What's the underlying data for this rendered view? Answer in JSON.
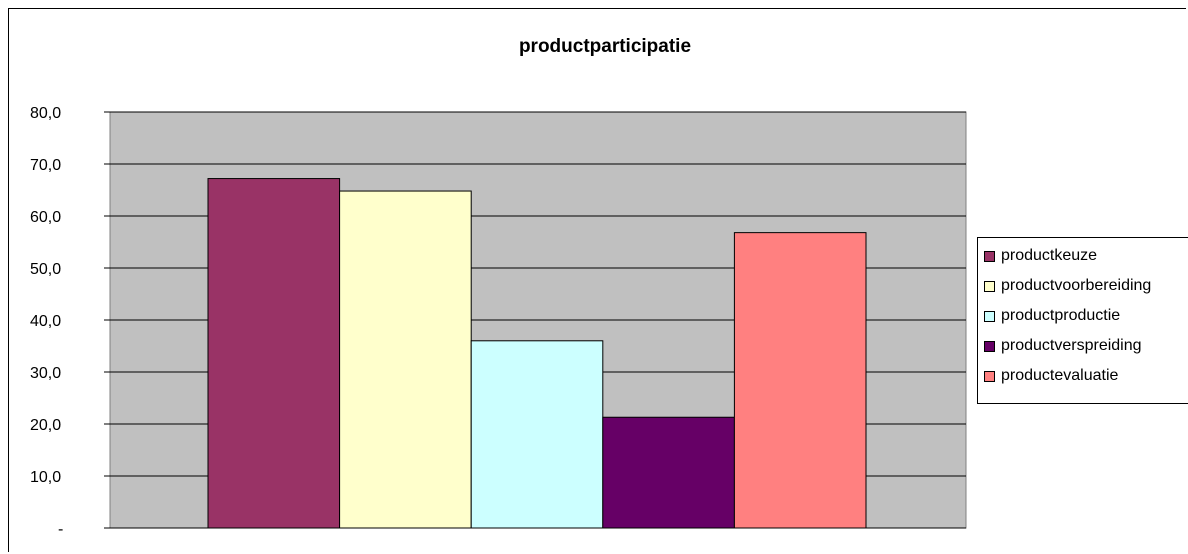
{
  "chart_data": {
    "type": "bar",
    "title": "productparticipatie",
    "xlabel": "",
    "ylabel": "",
    "ylim": [
      0,
      80
    ],
    "y_ticks": [
      "-",
      "10,0",
      "20,0",
      "30,0",
      "40,0",
      "50,0",
      "60,0",
      "70,0",
      "80,0"
    ],
    "grid": true,
    "legend_position": "right",
    "plot_background": "#c0c0c0",
    "series": [
      {
        "name": "productkeuze",
        "value": 67.2,
        "color": "#993366"
      },
      {
        "name": "productvoorbereiding",
        "value": 64.8,
        "color": "#ffffcc"
      },
      {
        "name": "productproductie",
        "value": 36.0,
        "color": "#ccffff"
      },
      {
        "name": "productverspreiding",
        "value": 21.3,
        "color": "#660066"
      },
      {
        "name": "productevaluatie",
        "value": 56.8,
        "color": "#ff8080"
      }
    ]
  }
}
